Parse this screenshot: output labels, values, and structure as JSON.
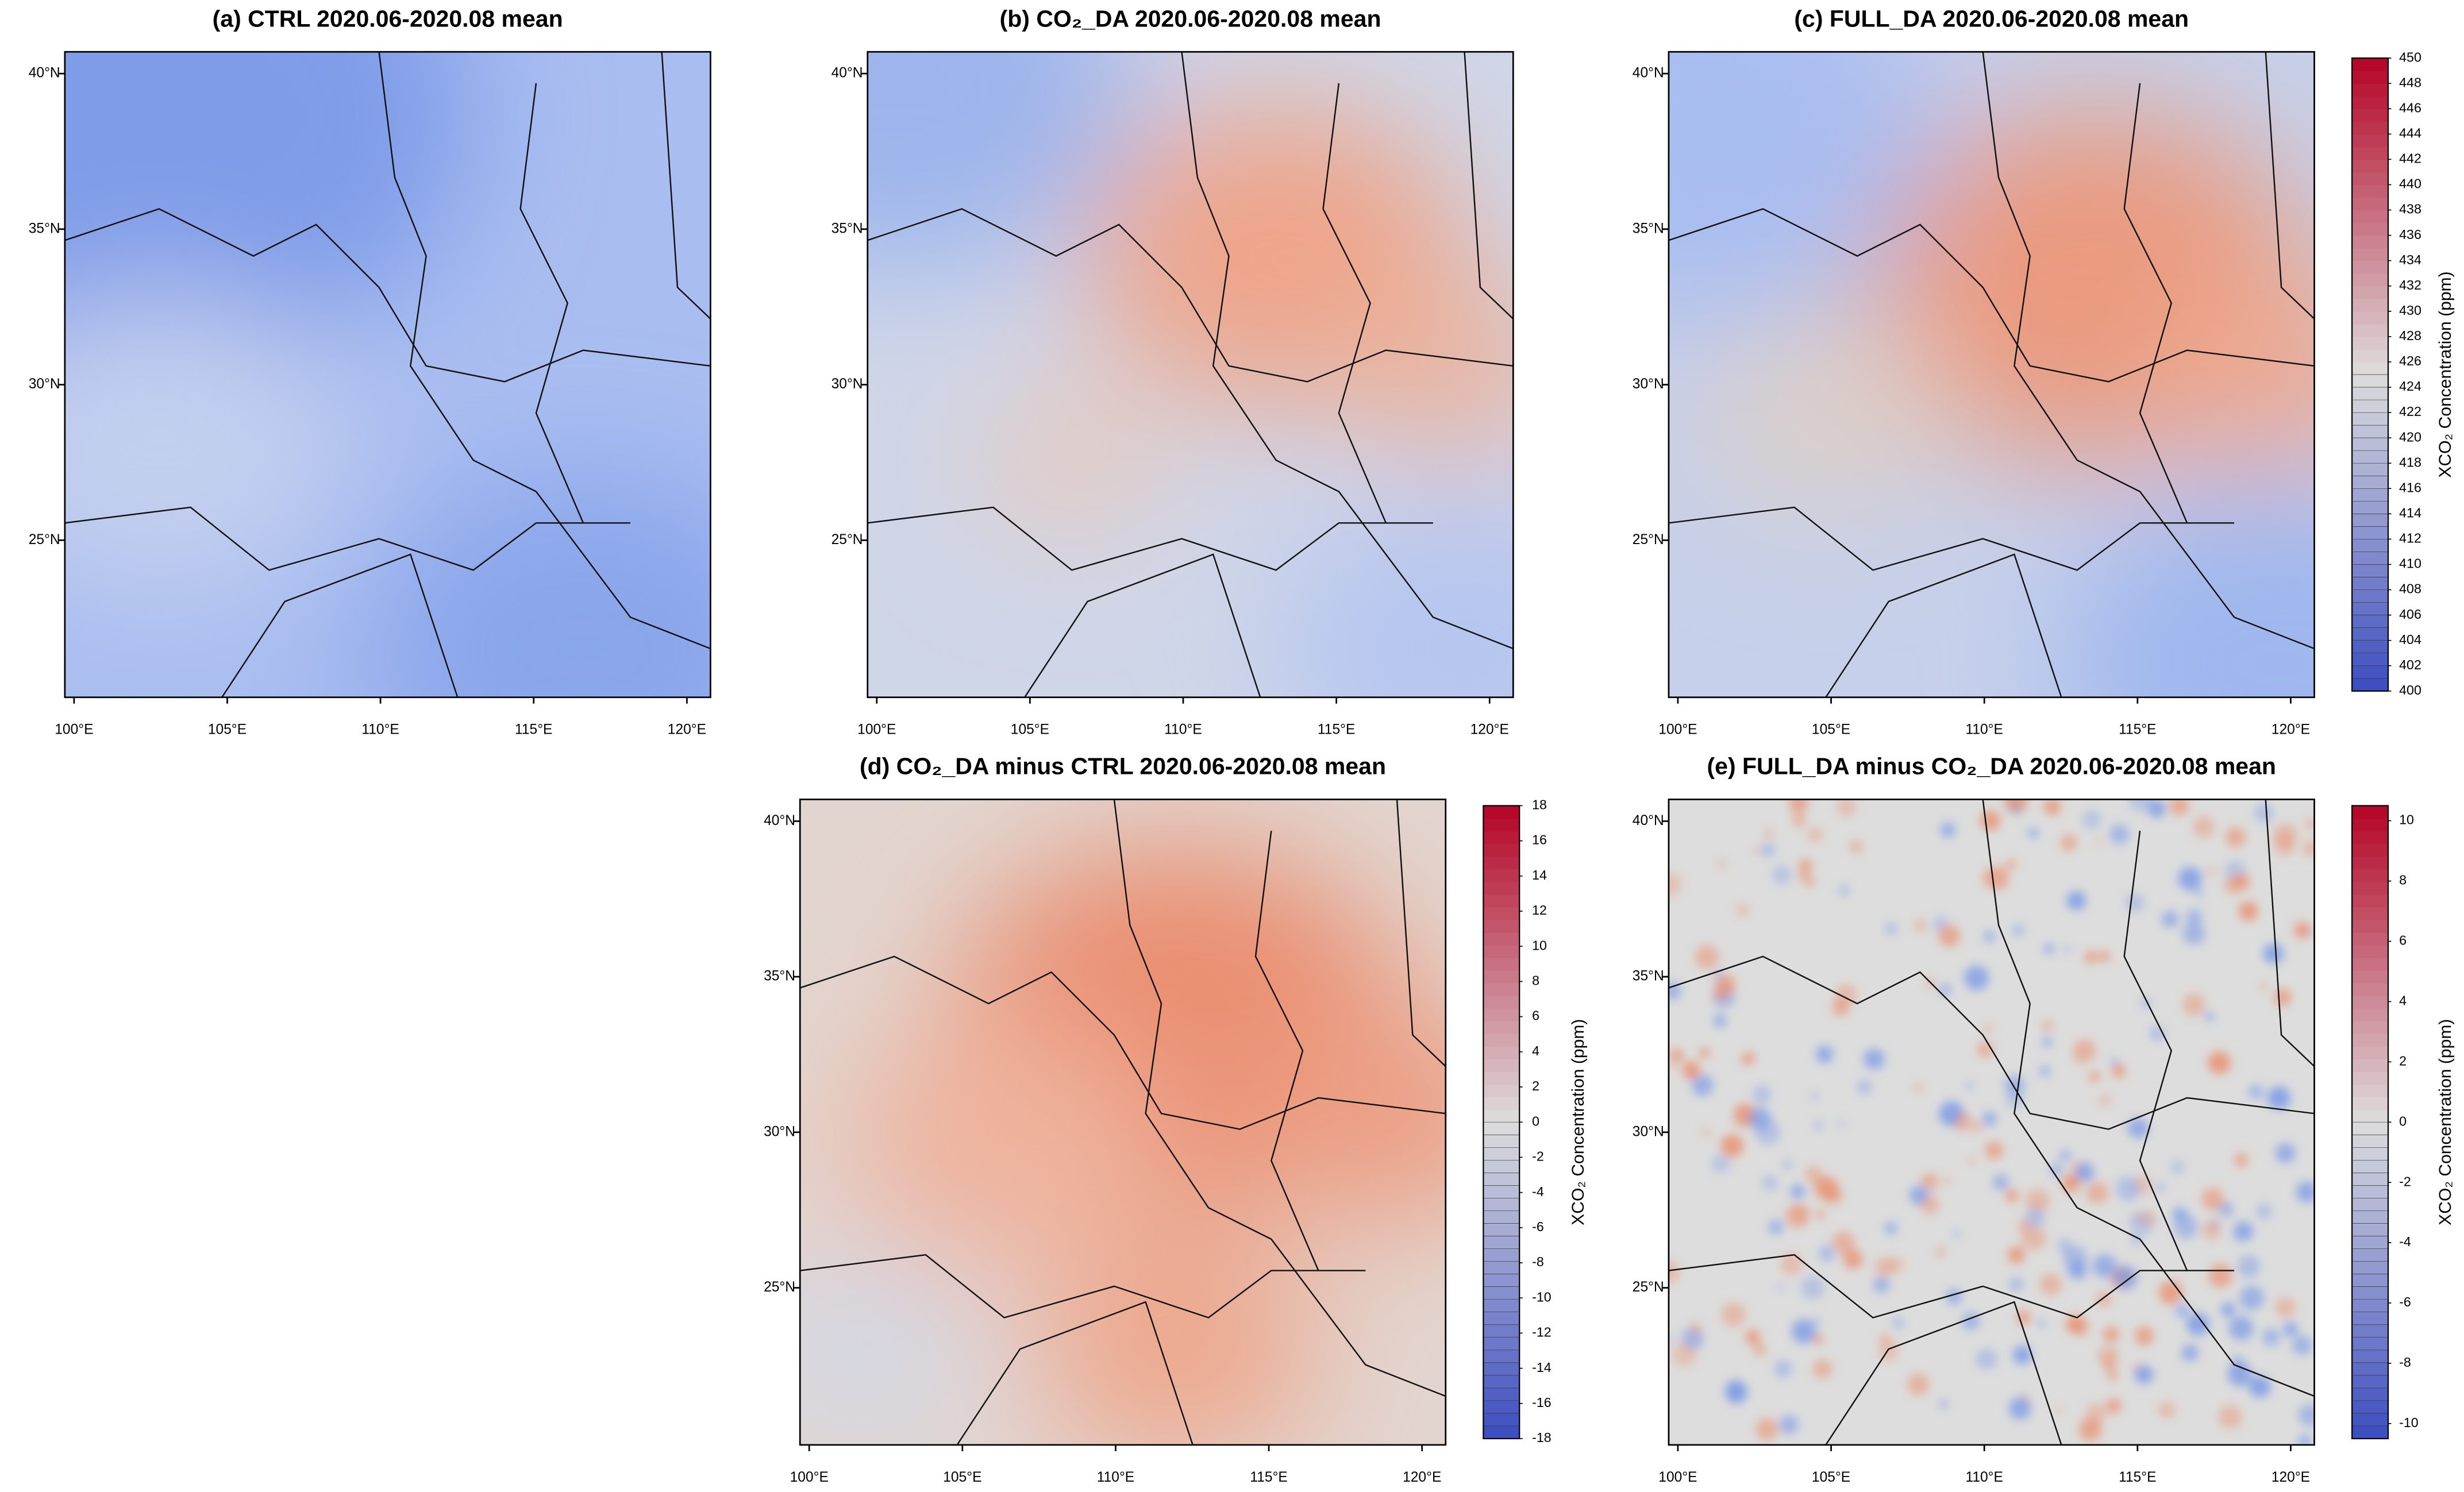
{
  "panels": [
    {
      "title": "(a) CTRL 2020.06-2020.08 mean",
      "xlim": [
        99.7,
        120.77
      ],
      "ylim": [
        19.95,
        40.7
      ],
      "xticks": [
        {
          "value": 100,
          "label": "100°E"
        },
        {
          "value": 105,
          "label": "105°E"
        },
        {
          "value": 110,
          "label": "110°E"
        },
        {
          "value": 115,
          "label": "115°E"
        },
        {
          "value": 120,
          "label": "120°E"
        }
      ],
      "yticks": [
        {
          "value": 25,
          "label": "25°N"
        },
        {
          "value": 30,
          "label": "30°N"
        },
        {
          "value": 35,
          "label": "35°N"
        },
        {
          "value": 40,
          "label": "40°N"
        }
      ]
    },
    {
      "title": "(b) CO₂_DA 2020.06-2020.08 mean",
      "xlim": [
        99.7,
        120.77
      ],
      "ylim": [
        19.95,
        40.7
      ],
      "xticks": [
        {
          "value": 100,
          "label": "100°E"
        },
        {
          "value": 105,
          "label": "105°E"
        },
        {
          "value": 110,
          "label": "110°E"
        },
        {
          "value": 115,
          "label": "115°E"
        },
        {
          "value": 120,
          "label": "120°E"
        }
      ],
      "yticks": [
        {
          "value": 25,
          "label": "25°N"
        },
        {
          "value": 30,
          "label": "30°N"
        },
        {
          "value": 35,
          "label": "35°N"
        },
        {
          "value": 40,
          "label": "40°N"
        }
      ]
    },
    {
      "title": "(c) FULL_DA 2020.06-2020.08 mean",
      "xlim": [
        99.7,
        120.77
      ],
      "ylim": [
        19.95,
        40.7
      ],
      "xticks": [
        {
          "value": 100,
          "label": "100°E"
        },
        {
          "value": 105,
          "label": "105°E"
        },
        {
          "value": 110,
          "label": "110°E"
        },
        {
          "value": 115,
          "label": "115°E"
        },
        {
          "value": 120,
          "label": "120°E"
        }
      ],
      "yticks": [
        {
          "value": 25,
          "label": "25°N"
        },
        {
          "value": 30,
          "label": "30°N"
        },
        {
          "value": 35,
          "label": "35°N"
        },
        {
          "value": 40,
          "label": "40°N"
        }
      ],
      "colorbar": {
        "label": "XCO₂ Concentration (ppm)",
        "lim": [
          400,
          450
        ],
        "colors": [
          "#3b4cc0",
          "#dddddd",
          "#b40426"
        ],
        "ticks": [
          400,
          402,
          404,
          406,
          408,
          410,
          412,
          414,
          416,
          418,
          420,
          422,
          424,
          426,
          428,
          430,
          432,
          434,
          436,
          438,
          440,
          442,
          444,
          446,
          448,
          450
        ]
      }
    },
    {
      "title": "(d) CO₂_DA minus CTRL 2020.06-2020.08 mean",
      "xlim": [
        99.7,
        120.77
      ],
      "ylim": [
        19.95,
        40.7
      ],
      "xticks": [
        {
          "value": 100,
          "label": "100°E"
        },
        {
          "value": 105,
          "label": "105°E"
        },
        {
          "value": 110,
          "label": "110°E"
        },
        {
          "value": 115,
          "label": "115°E"
        },
        {
          "value": 120,
          "label": "120°E"
        }
      ],
      "yticks": [
        {
          "value": 25,
          "label": "25°N"
        },
        {
          "value": 30,
          "label": "30°N"
        },
        {
          "value": 35,
          "label": "35°N"
        },
        {
          "value": 40,
          "label": "40°N"
        }
      ],
      "colorbar": {
        "label": "XCO₂ Concentration (ppm)",
        "lim": [
          -18,
          18
        ],
        "colors": [
          "#3b4cc0",
          "#dddddd",
          "#b40426"
        ],
        "ticks": [
          -18,
          -16,
          -14,
          -12,
          -10,
          -8,
          -6,
          -4,
          -2,
          0,
          2,
          4,
          6,
          8,
          10,
          12,
          14,
          16,
          18
        ]
      }
    },
    {
      "title": "(e) FULL_DA minus CO₂_DA 2020.06-2020.08 mean",
      "xlim": [
        99.7,
        120.77
      ],
      "ylim": [
        19.95,
        40.7
      ],
      "xticks": [
        {
          "value": 100,
          "label": "100°E"
        },
        {
          "value": 105,
          "label": "105°E"
        },
        {
          "value": 110,
          "label": "110°E"
        },
        {
          "value": 115,
          "label": "115°E"
        },
        {
          "value": 120,
          "label": "120°E"
        }
      ],
      "yticks": [
        {
          "value": 25,
          "label": "25°N"
        },
        {
          "value": 30,
          "label": "30°N"
        },
        {
          "value": 35,
          "label": "35°N"
        },
        {
          "value": 40,
          "label": "40°N"
        }
      ],
      "colorbar": {
        "label": "XCO₂ Concentration (ppm)",
        "lim": [
          -10.5,
          10.5
        ],
        "colors": [
          "#3b4cc0",
          "#dddddd",
          "#b40426"
        ],
        "ticks": [
          -10,
          -8,
          -6,
          -4,
          -2,
          0,
          2,
          4,
          6,
          8,
          10
        ]
      }
    }
  ]
}
